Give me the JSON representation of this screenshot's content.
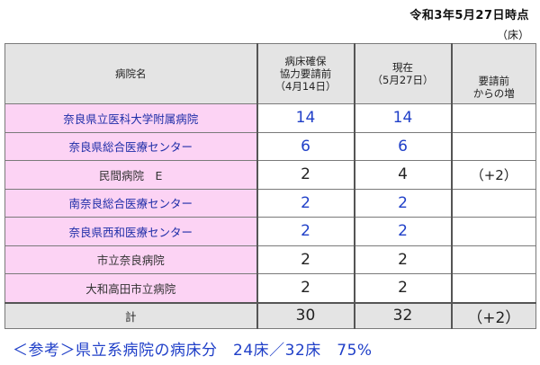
{
  "header": {
    "date": "令和3年5月27日時点",
    "unit": "（床）"
  },
  "table": {
    "headers": {
      "hospital": "病院名",
      "before_lines": [
        "病床確保",
        "協力要請前",
        "（4月14日）"
      ],
      "current_lines": [
        "現在",
        "（5月27日）"
      ],
      "increase_lines": [
        "要請前",
        "からの増"
      ]
    },
    "rows": [
      {
        "name": "奈良県立医科大学附属病院",
        "before": "14",
        "current": "14",
        "increase": ""
      },
      {
        "name": "奈良県総合医療センター",
        "before": "6",
        "current": "6",
        "increase": ""
      },
      {
        "name": "民間病院　E",
        "before": "2",
        "current": "4",
        "increase": "（+2）"
      },
      {
        "name": "南奈良総合医療センター",
        "before": "2",
        "current": "2",
        "increase": ""
      },
      {
        "name": "奈良県西和医療センター",
        "before": "2",
        "current": "2",
        "increase": ""
      },
      {
        "name": "市立奈良病院",
        "before": "2",
        "current": "2",
        "increase": ""
      },
      {
        "name": "大和高田市立病院",
        "before": "2",
        "current": "2",
        "increase": ""
      }
    ],
    "total": {
      "label": "計",
      "before": "30",
      "current": "32",
      "increase": "（+2）"
    }
  },
  "note": "＜参考＞県立系病院の病床分　24床／32床　75%",
  "colors": {
    "hospital_cell_bg": "#fcd3f4",
    "header_bg": "#e4e4e4",
    "prefectural_text": "#1f3fc8",
    "other_text": "#222222"
  }
}
